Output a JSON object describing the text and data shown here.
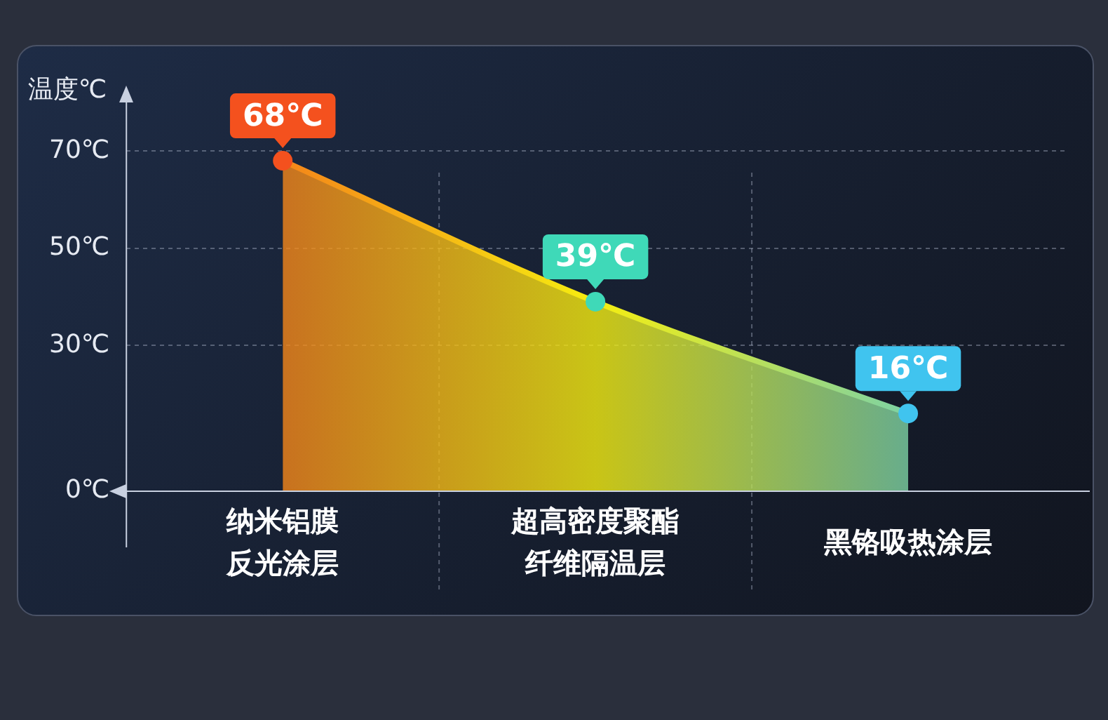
{
  "chart_data": {
    "type": "area",
    "ylabel": "温度℃",
    "categories": [
      "纳米铝膜反光涂层",
      "超高密度聚酯纤维隔温层",
      "黑铬吸热涂层"
    ],
    "values": [
      68,
      39,
      16
    ],
    "colors": [
      "#f4511e",
      "#3fd9b8",
      "#40c4ef"
    ],
    "value_labels": [
      "68℃",
      "39℃",
      "16℃"
    ],
    "ylim": [
      0,
      80
    ],
    "yticks": [
      {
        "value": 0,
        "label": "0℃"
      },
      {
        "value": 30,
        "label": "30℃"
      },
      {
        "value": 50,
        "label": "50℃"
      },
      {
        "value": 70,
        "label": "70℃"
      }
    ],
    "grid": true,
    "line_style": "solid",
    "marker": "circle",
    "legend": false
  }
}
